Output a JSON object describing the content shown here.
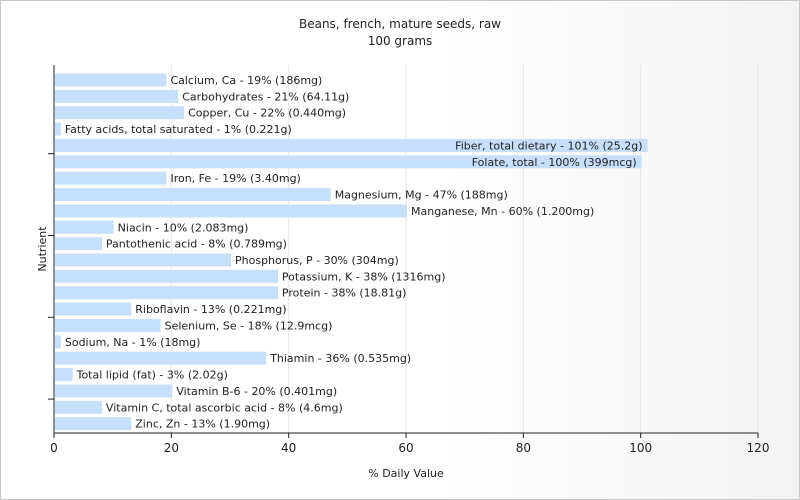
{
  "chart_data": {
    "type": "bar",
    "orientation": "horizontal",
    "title": "Beans, french, mature seeds, raw",
    "subtitle": "100 grams",
    "xlabel": "% Daily Value",
    "ylabel": "Nutrient",
    "xlim": [
      0,
      120
    ],
    "xticks": [
      0,
      20,
      40,
      60,
      80,
      100,
      120
    ],
    "grid": true,
    "bar_color": "#c6dffb",
    "categories": [
      "Calcium, Ca",
      "Carbohydrates",
      "Copper, Cu",
      "Fatty acids, total saturated",
      "Fiber, total dietary",
      "Folate, total",
      "Iron, Fe",
      "Magnesium, Mg",
      "Manganese, Mn",
      "Niacin",
      "Pantothenic acid",
      "Phosphorus, P",
      "Potassium, K",
      "Protein",
      "Riboflavin",
      "Selenium, Se",
      "Sodium, Na",
      "Thiamin",
      "Total lipid (fat)",
      "Vitamin B-6",
      "Vitamin C, total ascorbic acid",
      "Zinc, Zn"
    ],
    "values": [
      19,
      21,
      22,
      1,
      101,
      100,
      19,
      47,
      60,
      10,
      8,
      30,
      38,
      38,
      13,
      18,
      1,
      36,
      3,
      20,
      8,
      13
    ],
    "labels": [
      "Calcium, Ca - 19% (186mg)",
      "Carbohydrates - 21% (64.11g)",
      "Copper, Cu - 22% (0.440mg)",
      "Fatty acids, total saturated - 1% (0.221g)",
      "Fiber, total dietary - 101% (25.2g)",
      "Folate, total - 100% (399mcg)",
      "Iron, Fe - 19% (3.40mg)",
      "Magnesium, Mg - 47% (188mg)",
      "Manganese, Mn - 60% (1.200mg)",
      "Niacin - 10% (2.083mg)",
      "Pantothenic acid - 8% (0.789mg)",
      "Phosphorus, P - 30% (304mg)",
      "Potassium, K - 38% (1316mg)",
      "Protein - 38% (18.81g)",
      "Riboflavin - 13% (0.221mg)",
      "Selenium, Se - 18% (12.9mcg)",
      "Sodium, Na - 1% (18mg)",
      "Thiamin - 36% (0.535mg)",
      "Total lipid (fat) - 3% (2.02g)",
      "Vitamin B-6 - 20% (0.401mg)",
      "Vitamin C, total ascorbic acid - 8% (4.6mg)",
      "Zinc, Zn - 13% (1.90mg)"
    ]
  }
}
